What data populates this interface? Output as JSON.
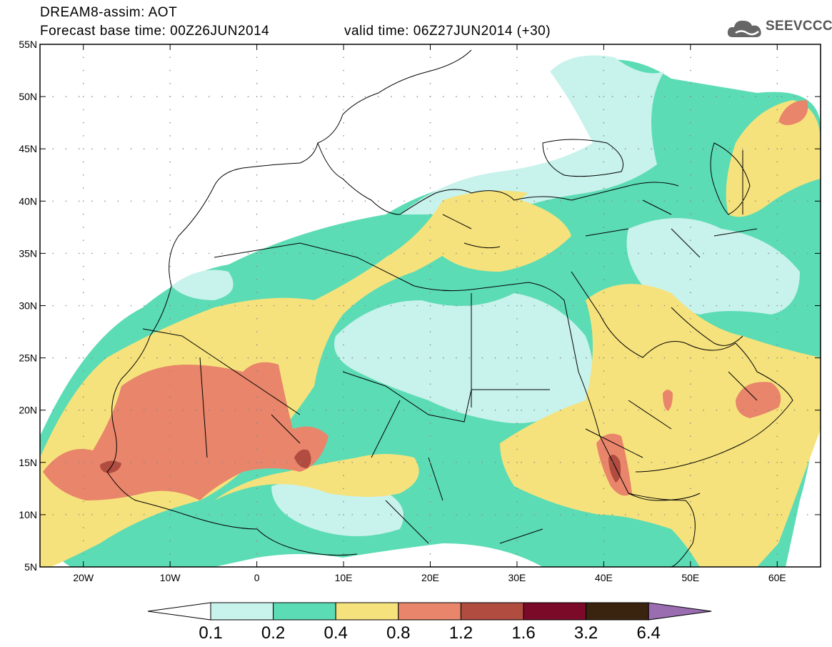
{
  "header": {
    "line1": "DREAM8-assim: AOT",
    "line2": "Forecast base time: 00Z26JUN2014",
    "valid": "valid time: 06Z27JUN2014 (+30)"
  },
  "logo": {
    "text": "SEEVCCC",
    "icon": "cloud-icon"
  },
  "axes": {
    "lat_labels": [
      "55N",
      "50N",
      "45N",
      "40N",
      "35N",
      "30N",
      "25N",
      "20N",
      "15N",
      "10N",
      "5N"
    ],
    "lon_labels": [
      "20W",
      "10W",
      "0",
      "10E",
      "20E",
      "30E",
      "40E",
      "50E",
      "60E"
    ],
    "lat_range": [
      5,
      55
    ],
    "lon_range": [
      -25,
      65
    ]
  },
  "colorbar": {
    "labels": [
      "0.1",
      "0.2",
      "0.4",
      "0.8",
      "1.2",
      "1.6",
      "3.2",
      "6.4"
    ],
    "colors": [
      "#c8f2ec",
      "#5cdcb4",
      "#f6e27c",
      "#e8856a",
      "#b04c40",
      "#7a0a28",
      "#3a2410",
      "#9a6cb0"
    ]
  },
  "map": {
    "domain": "Europe, North Africa, Middle East",
    "field": "Aerosol optical thickness"
  }
}
